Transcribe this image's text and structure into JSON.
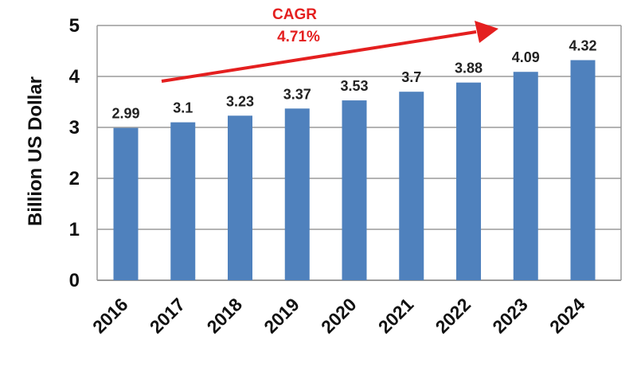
{
  "chart_data": {
    "type": "bar",
    "categories": [
      "2016",
      "2017",
      "2018",
      "2019",
      "2020",
      "2021",
      "2022",
      "2023",
      "2024"
    ],
    "values": [
      2.99,
      3.1,
      3.23,
      3.37,
      3.53,
      3.7,
      3.88,
      4.09,
      4.32
    ],
    "data_labels": [
      "2.99",
      "3.1",
      "3.23",
      "3.37",
      "3.53",
      "3.7",
      "3.88",
      "4.09",
      "4.32"
    ],
    "title": "",
    "xlabel": "",
    "ylabel": "Billion US Dollar",
    "ylim": [
      0,
      5
    ],
    "yticks": [
      "0",
      "1",
      "2",
      "3",
      "4",
      "5"
    ],
    "grid": true,
    "legend": "none",
    "annotation": {
      "label": "CAGR",
      "value": "4.71%"
    }
  },
  "colors": {
    "bar": "#4f81bd",
    "gridline": "#9a9a9a",
    "annotation": "#e41f1f",
    "text": "#111111"
  }
}
